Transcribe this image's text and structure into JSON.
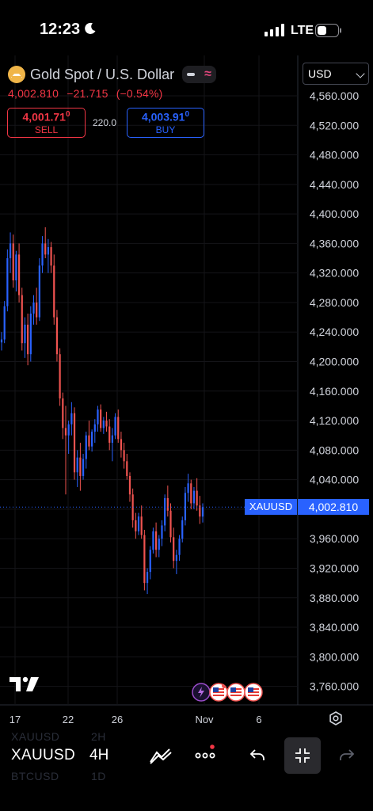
{
  "status_bar": {
    "time": "12:23",
    "network": "LTE"
  },
  "symbol": {
    "name": "Gold Spot / U.S. Dollar",
    "last": "4,002.810",
    "change": "−21.715",
    "change_pct": "(−0.54%)"
  },
  "trade": {
    "sell_price": "4,001.71",
    "sell_price_small": "0",
    "sell_label": "SELL",
    "spread": "220.0",
    "buy_price": "4,003.91",
    "buy_price_small": "0",
    "buy_label": "BUY"
  },
  "currency": {
    "selected": "USD"
  },
  "price_scale_tag": {
    "symbol": "XAUUSD",
    "value": "4,002.810"
  },
  "bottom_bar": {
    "symbol": "XAUUSD",
    "interval": "4H",
    "ghost_prev_symbol": "XAUUSD",
    "ghost_prev_interval": "2H",
    "ghost_next_symbol": "BTCUSD",
    "ghost_next_interval": "1D"
  },
  "colors": {
    "up": "#2962ff",
    "down": "#ef5350",
    "background": "#000000",
    "grid": "#141418",
    "accent": "#2962ff"
  },
  "chart_data": {
    "type": "candlestick",
    "symbol": "XAUUSD",
    "interval": "4H",
    "y_ticks": [
      "4,560.000",
      "4,520.000",
      "4,480.000",
      "4,440.000",
      "4,400.000",
      "4,360.000",
      "4,320.000",
      "4,280.000",
      "4,240.000",
      "4,200.000",
      "4,160.000",
      "4,120.000",
      "4,080.000",
      "4,040.000",
      "4,000.000",
      "3,960.000",
      "3,920.000",
      "3,880.000",
      "3,840.000",
      "3,800.000",
      "3,760.000"
    ],
    "ylim": [
      3740,
      4580
    ],
    "x_ticks": [
      "17",
      "22",
      "26",
      "Nov",
      "6"
    ],
    "last_price": 4002.81,
    "candles": [
      [
        4226,
        4240,
        4215,
        4230
      ],
      [
        4230,
        4282,
        4225,
        4275
      ],
      [
        4275,
        4352,
        4268,
        4340
      ],
      [
        4340,
        4375,
        4320,
        4360
      ],
      [
        4360,
        4372,
        4300,
        4310
      ],
      [
        4310,
        4350,
        4295,
        4345
      ],
      [
        4345,
        4360,
        4280,
        4290
      ],
      [
        4290,
        4300,
        4215,
        4225
      ],
      [
        4225,
        4260,
        4205,
        4250
      ],
      [
        4250,
        4265,
        4195,
        4210
      ],
      [
        4210,
        4275,
        4200,
        4265
      ],
      [
        4265,
        4290,
        4250,
        4280
      ],
      [
        4280,
        4300,
        4250,
        4260
      ],
      [
        4260,
        4340,
        4255,
        4330
      ],
      [
        4330,
        4370,
        4320,
        4360
      ],
      [
        4360,
        4382,
        4340,
        4345
      ],
      [
        4345,
        4366,
        4320,
        4355
      ],
      [
        4355,
        4362,
        4320,
        4330
      ],
      [
        4330,
        4345,
        4250,
        4260
      ],
      [
        4260,
        4270,
        4200,
        4210
      ],
      [
        4210,
        4218,
        4140,
        4150
      ],
      [
        4150,
        4158,
        4095,
        4110
      ],
      [
        4110,
        4140,
        4020,
        4100
      ],
      [
        4100,
        4120,
        4075,
        4115
      ],
      [
        4115,
        4145,
        4100,
        4130
      ],
      [
        4130,
        4138,
        4040,
        4050
      ],
      [
        4050,
        4080,
        4030,
        4070
      ],
      [
        4070,
        4090,
        4025,
        4045
      ],
      [
        4045,
        4075,
        4040,
        4068
      ],
      [
        4068,
        4105,
        4055,
        4100
      ],
      [
        4100,
        4120,
        4080,
        4085
      ],
      [
        4085,
        4108,
        4078,
        4105
      ],
      [
        4105,
        4122,
        4090,
        4115
      ],
      [
        4115,
        4140,
        4105,
        4135
      ],
      [
        4135,
        4142,
        4105,
        4110
      ],
      [
        4110,
        4125,
        4102,
        4120
      ],
      [
        4120,
        4132,
        4105,
        4112
      ],
      [
        4112,
        4122,
        4080,
        4090
      ],
      [
        4090,
        4110,
        4065,
        4100
      ],
      [
        4100,
        4130,
        4095,
        4125
      ],
      [
        4125,
        4135,
        4090,
        4095
      ],
      [
        4095,
        4105,
        4070,
        4080
      ],
      [
        4080,
        4090,
        4055,
        4065
      ],
      [
        4065,
        4075,
        4040,
        4045
      ],
      [
        4045,
        4050,
        4010,
        4020
      ],
      [
        4020,
        4028,
        3975,
        3985
      ],
      [
        3985,
        3995,
        3960,
        3970
      ],
      [
        3970,
        3995,
        3965,
        3990
      ],
      [
        3990,
        4005,
        3960,
        3965
      ],
      [
        3965,
        3972,
        3890,
        3900
      ],
      [
        3900,
        3920,
        3885,
        3915
      ],
      [
        3915,
        3950,
        3905,
        3945
      ],
      [
        3945,
        3975,
        3940,
        3970
      ],
      [
        3970,
        3982,
        3935,
        3945
      ],
      [
        3945,
        3965,
        3935,
        3960
      ],
      [
        3960,
        3985,
        3950,
        3978
      ],
      [
        3978,
        4020,
        3970,
        4015
      ],
      [
        4015,
        4032,
        3990,
        3998
      ],
      [
        3998,
        4008,
        3955,
        3962
      ],
      [
        3962,
        3975,
        3920,
        3930
      ],
      [
        3930,
        3945,
        3912,
        3938
      ],
      [
        3938,
        3965,
        3930,
        3960
      ],
      [
        3960,
        3990,
        3955,
        3985
      ],
      [
        3985,
        4030,
        3978,
        4022
      ],
      [
        4022,
        4048,
        4010,
        4035
      ],
      [
        4035,
        4040,
        4000,
        4008
      ],
      [
        4008,
        4030,
        4000,
        4025
      ],
      [
        4025,
        4042,
        3998,
        4005
      ],
      [
        4005,
        4018,
        3980,
        3990
      ],
      [
        3990,
        4008,
        3982,
        4002.81
      ]
    ]
  }
}
